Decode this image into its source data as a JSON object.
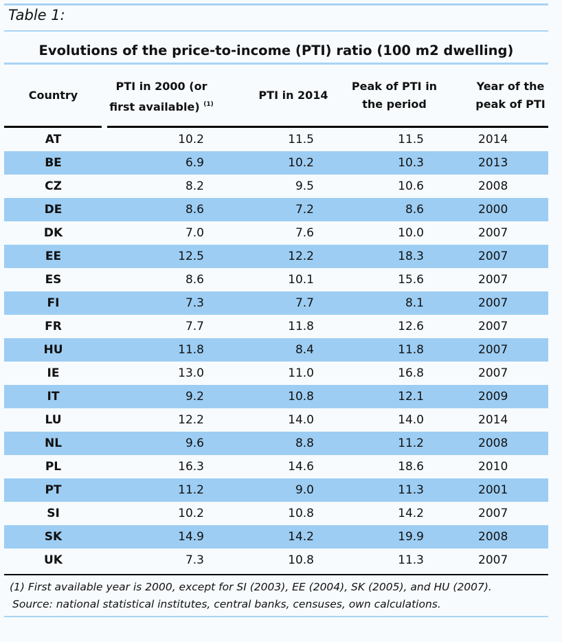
{
  "label": "Table 1:",
  "title": "Evolutions of the price-to-income (PTI) ratio (100 m2 dwelling)",
  "headers": {
    "country": "Country",
    "pti2000_line1": "PTI in 2000 (or",
    "pti2000_line2": "first available)",
    "pti2000_sup": "(1)",
    "pti2014": "PTI in 2014",
    "peak_line1": "Peak of PTI in",
    "peak_line2": "the period",
    "year_line1": "Year of the",
    "year_line2": "peak of PTI"
  },
  "rows": [
    {
      "country": "AT",
      "pti2000": "10.2",
      "pti2014": "11.5",
      "peak": "11.5",
      "year": "2014"
    },
    {
      "country": "BE",
      "pti2000": "6.9",
      "pti2014": "10.2",
      "peak": "10.3",
      "year": "2013"
    },
    {
      "country": "CZ",
      "pti2000": "8.2",
      "pti2014": "9.5",
      "peak": "10.6",
      "year": "2008"
    },
    {
      "country": "DE",
      "pti2000": "8.6",
      "pti2014": "7.2",
      "peak": "8.6",
      "year": "2000"
    },
    {
      "country": "DK",
      "pti2000": "7.0",
      "pti2014": "7.6",
      "peak": "10.0",
      "year": "2007"
    },
    {
      "country": "EE",
      "pti2000": "12.5",
      "pti2014": "12.2",
      "peak": "18.3",
      "year": "2007"
    },
    {
      "country": "ES",
      "pti2000": "8.6",
      "pti2014": "10.1",
      "peak": "15.6",
      "year": "2007"
    },
    {
      "country": "FI",
      "pti2000": "7.3",
      "pti2014": "7.7",
      "peak": "8.1",
      "year": "2007"
    },
    {
      "country": "FR",
      "pti2000": "7.7",
      "pti2014": "11.8",
      "peak": "12.6",
      "year": "2007"
    },
    {
      "country": "HU",
      "pti2000": "11.8",
      "pti2014": "8.4",
      "peak": "11.8",
      "year": "2007"
    },
    {
      "country": "IE",
      "pti2000": "13.0",
      "pti2014": "11.0",
      "peak": "16.8",
      "year": "2007"
    },
    {
      "country": "IT",
      "pti2000": "9.2",
      "pti2014": "10.8",
      "peak": "12.1",
      "year": "2009"
    },
    {
      "country": "LU",
      "pti2000": "12.2",
      "pti2014": "14.0",
      "peak": "14.0",
      "year": "2014"
    },
    {
      "country": "NL",
      "pti2000": "9.6",
      "pti2014": "8.8",
      "peak": "11.2",
      "year": "2008"
    },
    {
      "country": "PL",
      "pti2000": "16.3",
      "pti2014": "14.6",
      "peak": "18.6",
      "year": "2010"
    },
    {
      "country": "PT",
      "pti2000": "11.2",
      "pti2014": "9.0",
      "peak": "11.3",
      "year": "2001"
    },
    {
      "country": "SI",
      "pti2000": "10.2",
      "pti2014": "10.8",
      "peak": "14.2",
      "year": "2007"
    },
    {
      "country": "SK",
      "pti2000": "14.9",
      "pti2014": "14.2",
      "peak": "19.9",
      "year": "2008"
    },
    {
      "country": "UK",
      "pti2000": "7.3",
      "pti2014": "10.8",
      "peak": "11.3",
      "year": "2007"
    }
  ],
  "footnote1": "(1) First available year is 2000, except for SI (2003), EE (2004), SK (2005), and HU (2007).",
  "footnote2": "Source: national statistical institutes, central banks, censuses, own calculations.",
  "colors": {
    "shade": "#9dcdf3",
    "rule": "#a9d3f4",
    "background": "#f7fbfe"
  }
}
